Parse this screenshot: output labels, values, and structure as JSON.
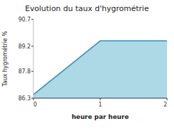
{
  "chart_data": {
    "type": "area",
    "title": "Evolution du taux d'hygrométrie",
    "x_label": "heure par heure",
    "y_label": "Taux hygrométrie %",
    "x": [
      0,
      1,
      2
    ],
    "values": [
      86.5,
      89.5,
      89.5
    ],
    "color": "#add8e6",
    "xlim": [
      0,
      2
    ],
    "ylim": [
      86.3,
      90.7
    ],
    "xticks": [
      0,
      1,
      2
    ],
    "yticks": [
      86.3,
      87.8,
      89.2,
      90.7
    ],
    "grid": false
  }
}
